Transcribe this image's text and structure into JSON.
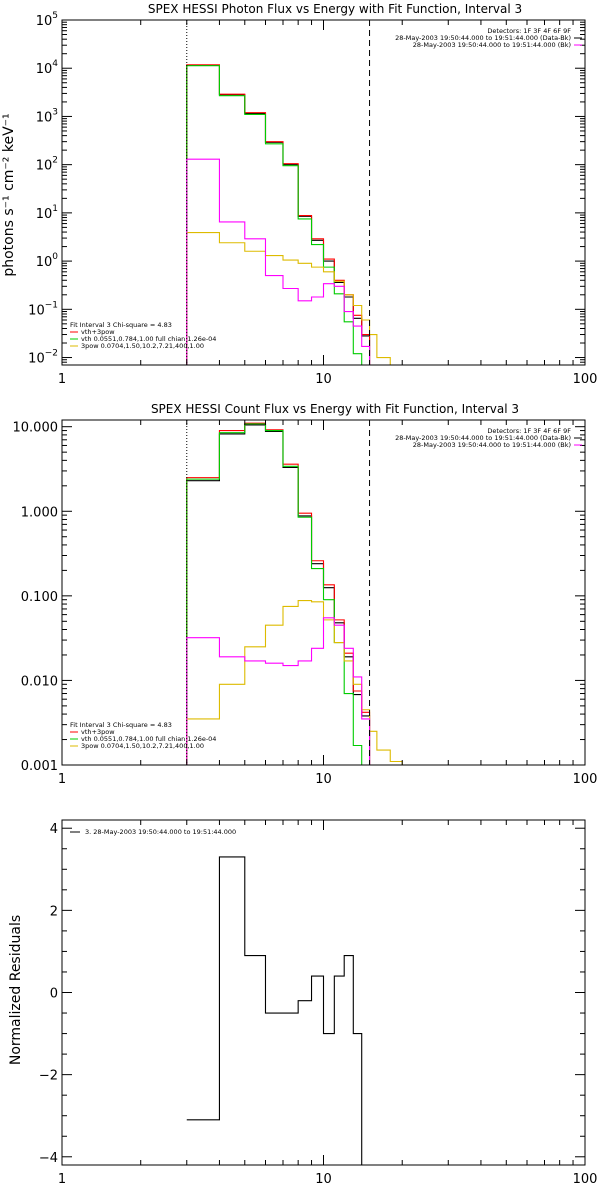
{
  "chart_data": [
    {
      "type": "line",
      "title": "SPEX HESSI Photon Flux vs Energy with Fit Function, Interval 3",
      "xlabel": "",
      "ylabel": "photons s⁻¹ cm⁻² keV⁻¹",
      "xlim": [
        1,
        100
      ],
      "ylim": [
        0.007,
        100000
      ],
      "xscale": "log",
      "yscale": "log",
      "xticks": [
        "1",
        "10",
        "100"
      ],
      "yticks": [
        {
          "base": "10",
          "exp": "5",
          "value": 100000
        },
        {
          "base": "10",
          "exp": "4",
          "value": 10000
        },
        {
          "base": "10",
          "exp": "3",
          "value": 1000
        },
        {
          "base": "10",
          "exp": "2",
          "value": 100
        },
        {
          "base": "10",
          "exp": "1",
          "value": 10
        },
        {
          "base": "10",
          "exp": "0",
          "value": 1
        },
        {
          "base": "10",
          "exp": "−1",
          "value": 0.1
        },
        {
          "base": "10",
          "exp": "−2",
          "value": 0.01
        }
      ],
      "vlines": [
        {
          "x": 3,
          "style": "dotted"
        },
        {
          "x": 15,
          "style": "dashed"
        }
      ],
      "info_lines": [
        {
          "text": "Detectors: 1F 3F 4F 6F 9F",
          "color": ""
        },
        {
          "text": "28-May-2003 19:50:44.000 to 19:51:44.000 (Data-Bk)",
          "color": "#000000"
        },
        {
          "text": "28-May-2003 19:50:44.000 to 19:51:44.000 (Bk)",
          "color": "#ff00ff"
        }
      ],
      "fit_legend": [
        {
          "text": "Fit Interval 3   Chi-square = 4.83",
          "color": ""
        },
        {
          "text": "vth+3pow",
          "color": "#ff0000"
        },
        {
          "text": "vth 0.0551,0.784,1.00  full chian 1.26e-04",
          "color": "#00cc00"
        },
        {
          "text": "3pow 0.0704,1.50,10.2,7.21,400,1.00",
          "color": "#ddbb00"
        }
      ],
      "series": [
        {
          "name": "Data-Bk",
          "color": "#000000",
          "edges": [
            3,
            4,
            5,
            6,
            7,
            8,
            9,
            10,
            11,
            12,
            13,
            14,
            15
          ],
          "values": [
            11500,
            2800,
            1150,
            290,
            100,
            8.5,
            2.7,
            1.0,
            0.36,
            0.18,
            0.065,
            0.028
          ]
        },
        {
          "name": "vth+3pow",
          "color": "#ff0000",
          "edges": [
            3,
            4,
            5,
            6,
            7,
            8,
            9,
            10,
            11,
            12,
            13,
            14,
            15
          ],
          "values": [
            11800,
            2900,
            1200,
            300,
            105,
            8.8,
            2.9,
            1.1,
            0.4,
            0.2,
            0.075,
            0.03
          ]
        },
        {
          "name": "vth",
          "color": "#00cc00",
          "edges": [
            3,
            4,
            5,
            6,
            7,
            8,
            9,
            10,
            11,
            12,
            13,
            14
          ],
          "values": [
            11300,
            2700,
            1100,
            270,
            95,
            7.5,
            2.2,
            0.75,
            0.21,
            0.055,
            0.012
          ]
        },
        {
          "name": "3pow",
          "color": "#ddbb00",
          "edges": [
            3,
            4,
            5,
            6,
            7,
            8,
            9,
            10,
            11,
            12,
            13,
            14,
            15,
            16,
            18
          ],
          "values": [
            3.9,
            2.4,
            1.6,
            1.3,
            1.05,
            0.9,
            0.75,
            0.6,
            0.38,
            0.2,
            0.12,
            0.06,
            0.03,
            0.01
          ]
        },
        {
          "name": "Bk",
          "color": "#ff00ff",
          "edges": [
            3,
            4,
            5,
            6,
            7,
            8,
            9,
            10,
            11,
            12,
            13,
            14,
            15
          ],
          "values": [
            130,
            6.5,
            2.9,
            0.5,
            0.27,
            0.15,
            0.18,
            0.34,
            0.3,
            0.09,
            0.045,
            0.017
          ]
        }
      ]
    },
    {
      "type": "line",
      "title": "SPEX HESSI Count Flux vs Energy with Fit Function, Interval 3",
      "xlabel": "",
      "ylabel": "",
      "xlim": [
        1,
        100
      ],
      "ylim": [
        0.001,
        12
      ],
      "xscale": "log",
      "yscale": "log",
      "xticks": [
        "1",
        "10",
        "100"
      ],
      "yticks": [
        {
          "label": "10.000",
          "value": 10
        },
        {
          "label": "1.000",
          "value": 1
        },
        {
          "label": "0.100",
          "value": 0.1
        },
        {
          "label": "0.010",
          "value": 0.01
        },
        {
          "label": "0.001",
          "value": 0.001
        }
      ],
      "vlines": [
        {
          "x": 3,
          "style": "dotted"
        },
        {
          "x": 15,
          "style": "dashed"
        }
      ],
      "info_lines": [
        {
          "text": "Detectors: 1F 3F 4F 6F 9F",
          "color": ""
        },
        {
          "text": "28-May-2003 19:50:44.000 to 19:51:44.000 (Data-Bk)",
          "color": "#000000"
        },
        {
          "text": "28-May-2003 19:50:44.000 to 19:51:44.000 (Bk)",
          "color": "#ff00ff"
        }
      ],
      "fit_legend": [
        {
          "text": "Fit Interval 3   Chi-square = 4.83",
          "color": ""
        },
        {
          "text": "vth+3pow",
          "color": "#ff0000"
        },
        {
          "text": "vth 0.0551,0.784,1.00  full chian 1.26e-04",
          "color": "#00cc00"
        },
        {
          "text": "3pow 0.0704,1.50,10.2,7.21,400,1.00",
          "color": "#ddbb00"
        }
      ],
      "series": [
        {
          "name": "Data-Bk",
          "color": "#000000",
          "edges": [
            3,
            4,
            5,
            6,
            7,
            8,
            9,
            10,
            11,
            12,
            13,
            14,
            15
          ],
          "values": [
            2.3,
            8.2,
            10.5,
            8.8,
            3.3,
            0.88,
            0.24,
            0.125,
            0.048,
            0.019,
            0.0068,
            0.0038
          ]
        },
        {
          "name": "vth+3pow",
          "color": "#ff0000",
          "edges": [
            3,
            4,
            5,
            6,
            7,
            8,
            9,
            10,
            11,
            12,
            13,
            14,
            15
          ],
          "values": [
            2.5,
            9.0,
            11.0,
            9.2,
            3.6,
            0.95,
            0.26,
            0.135,
            0.052,
            0.021,
            0.0075,
            0.0042
          ]
        },
        {
          "name": "vth",
          "color": "#00cc00",
          "edges": [
            3,
            4,
            5,
            6,
            7,
            8,
            9,
            10,
            11,
            12,
            13,
            14
          ],
          "values": [
            2.4,
            8.5,
            10.8,
            9.0,
            3.4,
            0.85,
            0.21,
            0.09,
            0.028,
            0.007,
            0.0017
          ]
        },
        {
          "name": "3pow",
          "color": "#ddbb00",
          "edges": [
            3,
            4,
            5,
            6,
            7,
            8,
            9,
            10,
            11,
            12,
            13,
            14,
            15,
            16,
            18,
            20
          ],
          "values": [
            0.0035,
            0.009,
            0.025,
            0.045,
            0.075,
            0.088,
            0.085,
            0.052,
            0.028,
            0.017,
            0.009,
            0.0045,
            0.0025,
            0.0015,
            0.0011
          ]
        },
        {
          "name": "Bk",
          "color": "#ff00ff",
          "edges": [
            3,
            4,
            5,
            6,
            7,
            8,
            9,
            10,
            11,
            12,
            13,
            14,
            15
          ],
          "values": [
            0.032,
            0.019,
            0.017,
            0.016,
            0.015,
            0.017,
            0.024,
            0.055,
            0.045,
            0.024,
            0.011,
            0.0035
          ]
        }
      ]
    },
    {
      "type": "line",
      "title": "",
      "xlabel": "",
      "ylabel": "Normalized Residuals",
      "xlim": [
        1,
        100
      ],
      "ylim": [
        -4.2,
        4.2
      ],
      "xscale": "log",
      "yscale": "linear",
      "xticks": [
        "1",
        "10",
        "100"
      ],
      "yticks": [
        {
          "label": "4",
          "value": 4
        },
        {
          "label": "2",
          "value": 2
        },
        {
          "label": "0",
          "value": 0
        },
        {
          "label": "−2",
          "value": -2
        },
        {
          "label": "−4",
          "value": -4
        }
      ],
      "legend": "3. 28-May-2003 19:50:44.000 to 19:51:44.000",
      "series": [
        {
          "name": "3. 28-May-2003 19:50:44.000 to 19:51:44.000",
          "color": "#000000",
          "edges": [
            3,
            4,
            5,
            6,
            8,
            9,
            10,
            11,
            12,
            13,
            14,
            15
          ],
          "values": [
            -3.1,
            3.3,
            0.9,
            -0.5,
            -0.2,
            0.4,
            -1.0,
            0.4,
            0.9,
            -1.0,
            -4.2
          ]
        }
      ]
    }
  ]
}
